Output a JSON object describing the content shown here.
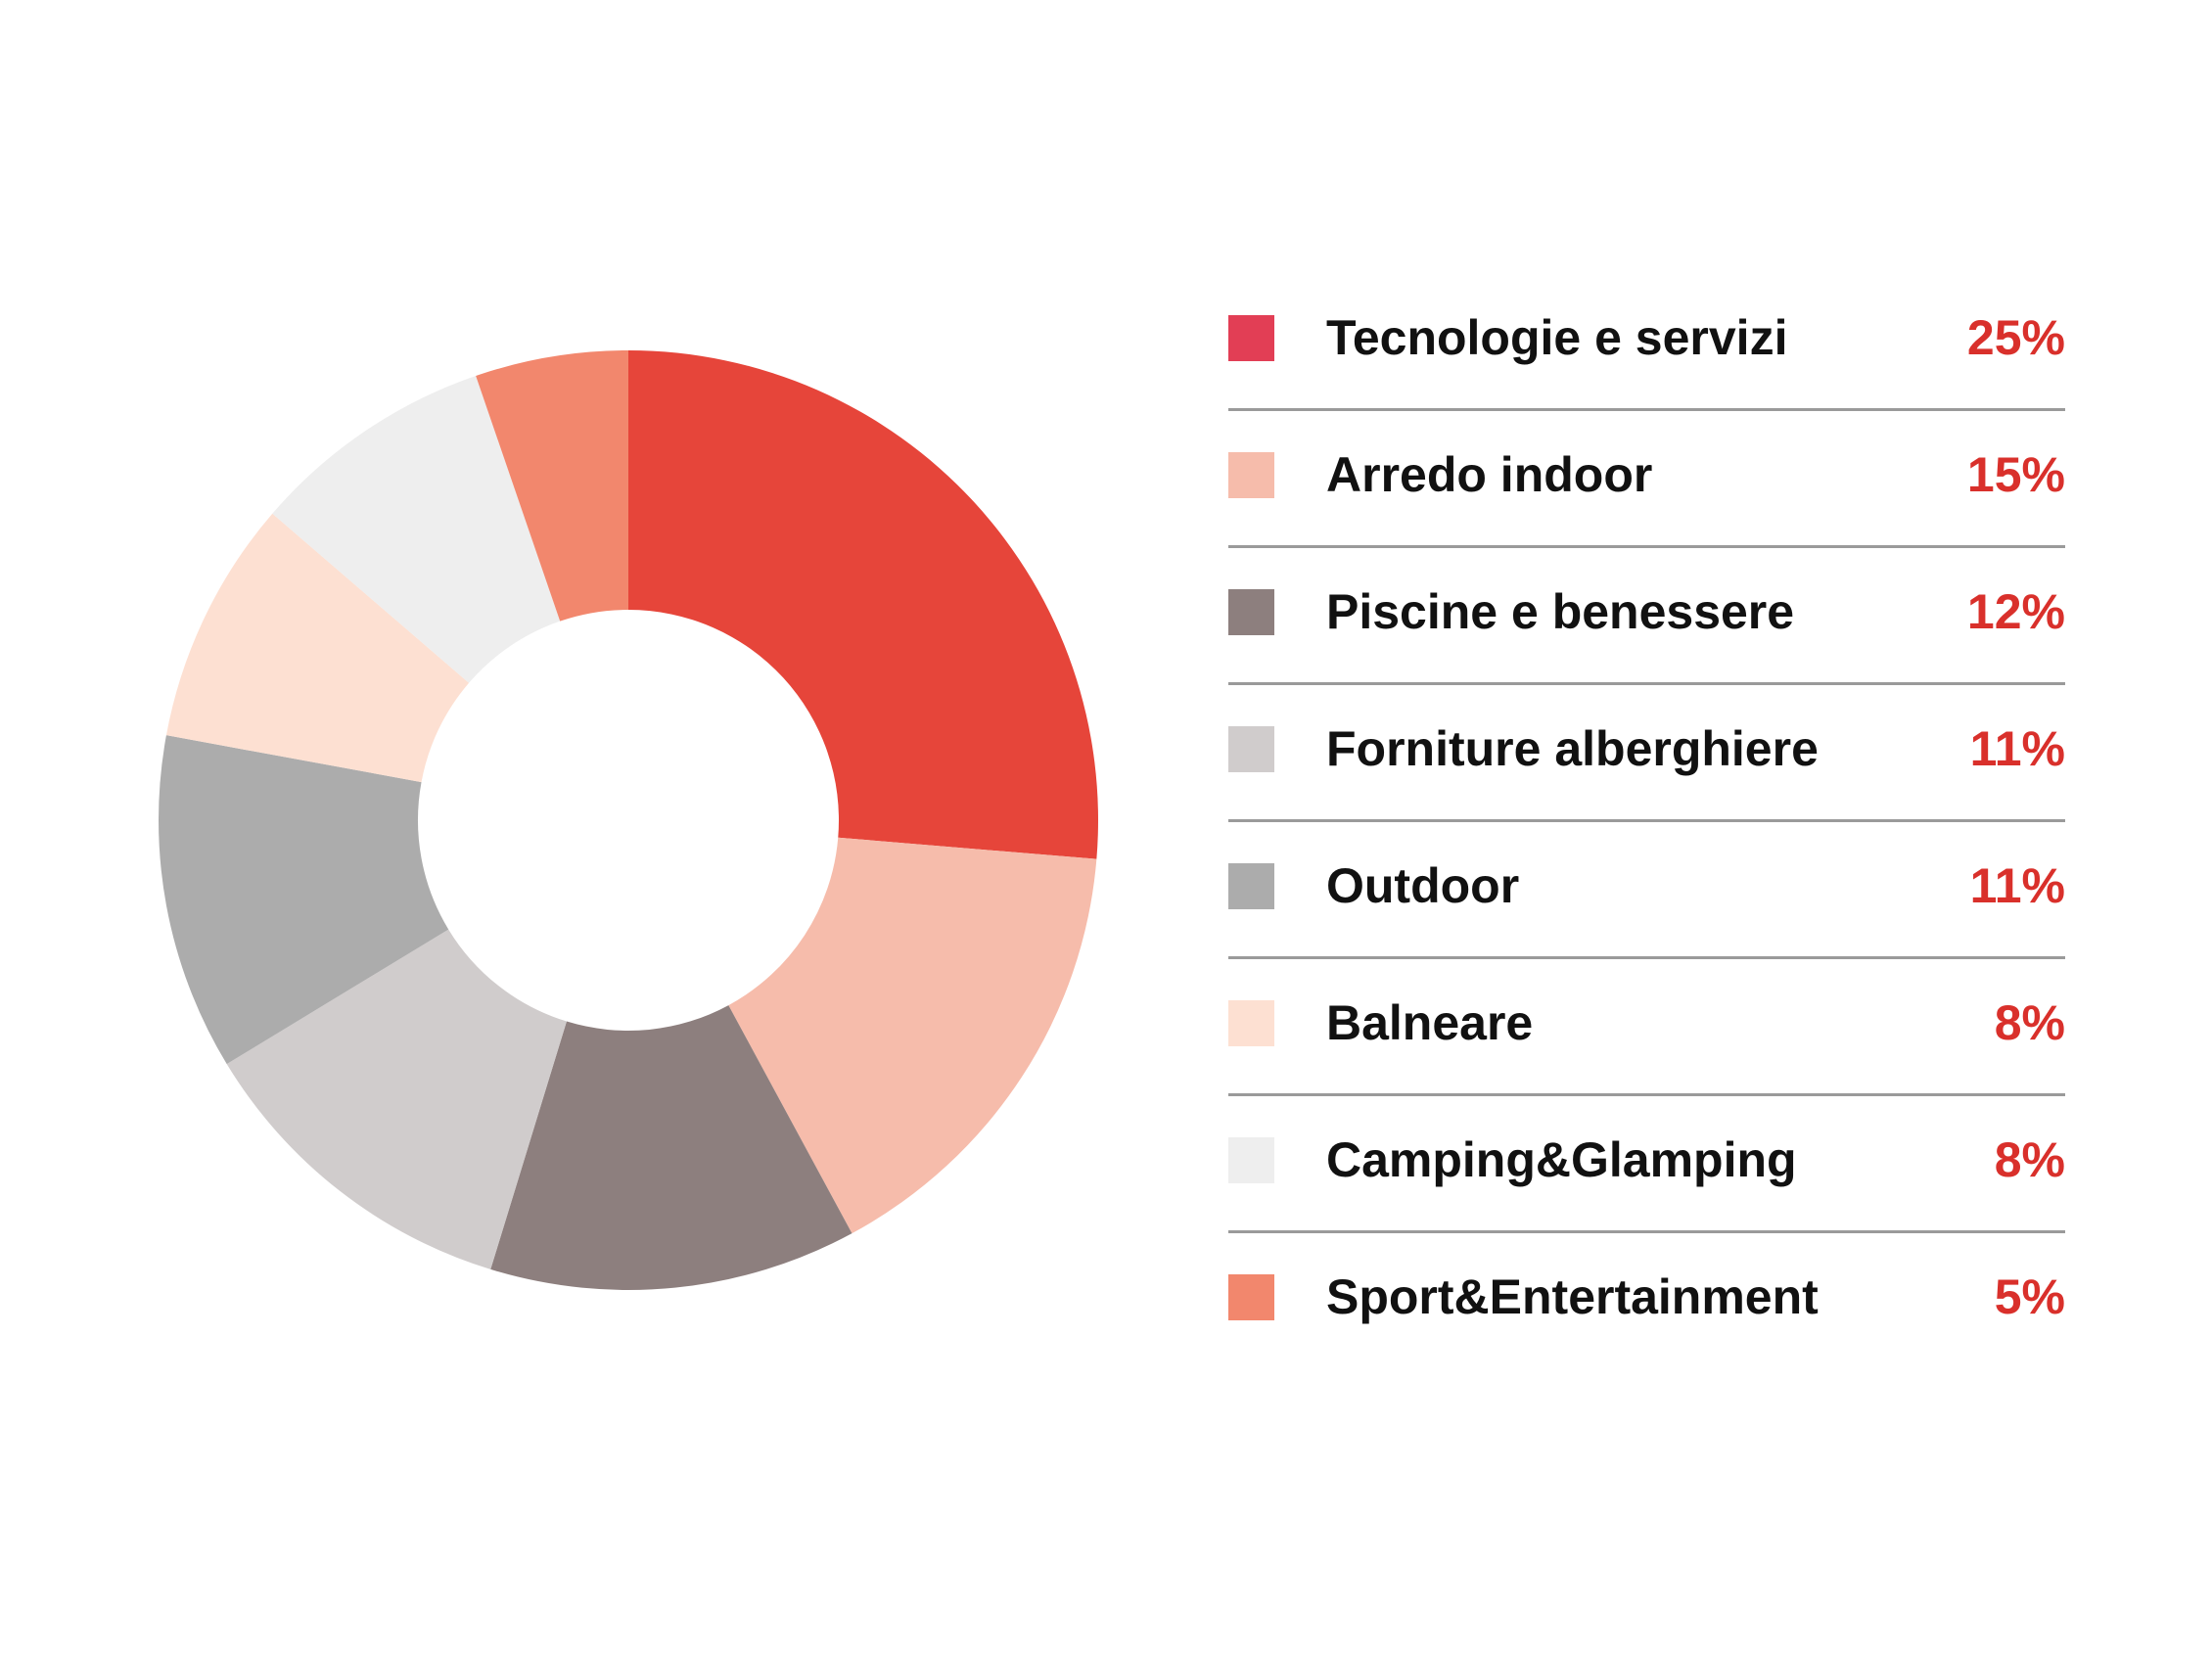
{
  "chart_data": {
    "type": "pie",
    "variant": "donut",
    "legend_position": "right",
    "slices": [
      {
        "label": "Tecnologie e servizi",
        "value": 25,
        "display": "25%",
        "color": "#e6453a",
        "legend_color": "#e23e55"
      },
      {
        "label": "Arredo indoor",
        "value": 15,
        "display": "15%",
        "color": "#f6bcab",
        "legend_color": "#f6bcab"
      },
      {
        "label": "Piscine e benessere",
        "value": 12,
        "display": "12%",
        "color": "#8d7f7e",
        "legend_color": "#8d7f7e"
      },
      {
        "label": "Forniture alberghiere",
        "value": 11,
        "display": "11%",
        "color": "#d0cccc",
        "legend_color": "#d0cccc"
      },
      {
        "label": "Outdoor",
        "value": 11,
        "display": "11%",
        "color": "#acacac",
        "legend_color": "#acacac"
      },
      {
        "label": "Balneare",
        "value": 8,
        "display": "8%",
        "color": "#fde0d2",
        "legend_color": "#fde0d2"
      },
      {
        "label": "Camping&Glamping",
        "value": 8,
        "display": "8%",
        "color": "#eeeeee",
        "legend_color": "#eeeeee"
      },
      {
        "label": "Sport&Entertainment",
        "value": 5,
        "display": "5%",
        "color": "#f2876d",
        "legend_color": "#f2876d"
      }
    ]
  }
}
